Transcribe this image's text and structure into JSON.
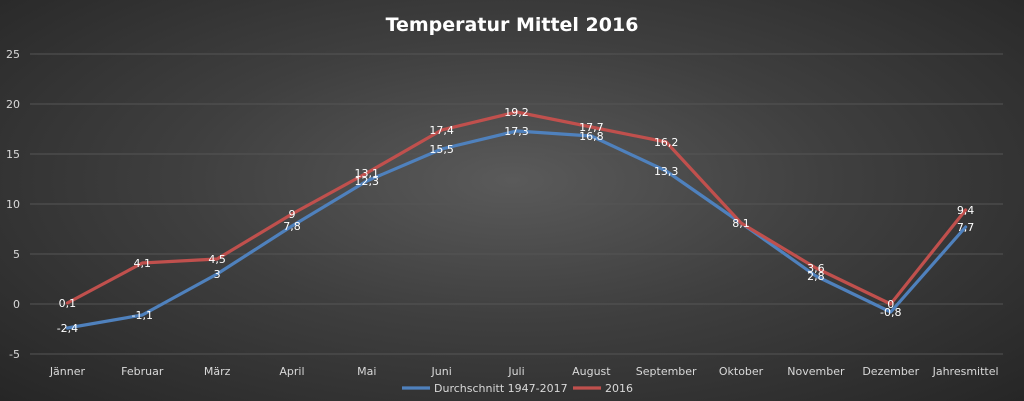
{
  "chart_data": {
    "type": "line",
    "title": "Temperatur Mittel 2016",
    "categories": [
      "Jänner",
      "Februar",
      "März",
      "April",
      "Mai",
      "Juni",
      "Juli",
      "August",
      "September",
      "Oktober",
      "November",
      "Dezember",
      "Jahresmittel"
    ],
    "ylim": [
      -5,
      25
    ],
    "yticks": [
      "-5",
      "0",
      "5",
      "10",
      "15",
      "20",
      "25"
    ],
    "grid": true,
    "legend": "bottom",
    "series": [
      {
        "name": "Durchschnitt 1947-2017",
        "color": "#4f81bd",
        "values": [
          -2.4,
          -1.1,
          3,
          7.8,
          12.3,
          15.5,
          17.3,
          16.8,
          13.3,
          8.1,
          2.8,
          -0.8,
          7.7
        ],
        "labels": [
          "-2,4",
          "-1,1",
          "3",
          "7,8",
          "12,3",
          "15,5",
          "17,3",
          "16,8",
          "13,3",
          "8,1",
          "2,8",
          "-0,8",
          "7,7"
        ]
      },
      {
        "name": "2016",
        "color": "#c0504d",
        "values": [
          0.1,
          4.1,
          4.5,
          9,
          13.1,
          17.4,
          19.2,
          17.7,
          16.2,
          8.1,
          3.6,
          0,
          9.4
        ],
        "labels": [
          "0,1",
          "4,1",
          "4,5",
          "9",
          "13,1",
          "17,4",
          "19,2",
          "17,7",
          "16,2",
          "",
          "3,6",
          "0",
          "9,4"
        ]
      }
    ]
  }
}
